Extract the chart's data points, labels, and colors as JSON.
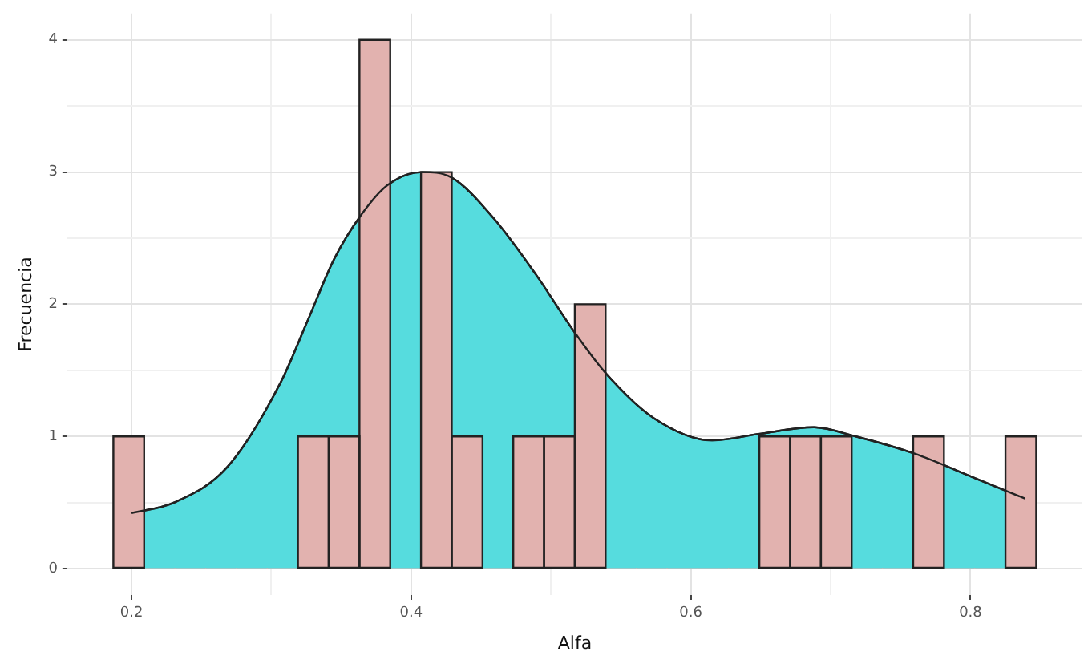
{
  "chart_data": {
    "type": "histogram",
    "xlabel": "Alfa",
    "ylabel": "Frecuencia",
    "xlim": [
      0.154,
      0.88
    ],
    "ylim": [
      -0.2,
      4.2
    ],
    "xticks": [
      0.2,
      {
        "value": 0.3,
        "label": null
      },
      0.4,
      {
        "value": 0.5,
        "label": null
      },
      0.6,
      {
        "value": 0.7,
        "label": null
      },
      0.8
    ],
    "yticks": [
      0,
      {
        "value": 0.5,
        "label": null
      },
      1,
      {
        "value": 1.5,
        "label": null
      },
      2,
      {
        "value": 2.5,
        "label": null
      },
      3,
      {
        "value": 3.5,
        "label": null
      },
      4
    ],
    "grid": true,
    "series": [
      {
        "type": "area",
        "color": "#56dcde",
        "x": [
          0.2,
          0.2305,
          0.2686,
          0.3067,
          0.3257,
          0.3448,
          0.3638,
          0.3829,
          0.4076,
          0.4286,
          0.459,
          0.4895,
          0.516,
          0.539,
          0.5733,
          0.6152,
          0.6495,
          0.6876,
          0.718,
          0.76,
          0.8019,
          0.8389
        ],
        "values": [
          0.42,
          0.5,
          0.77,
          1.41,
          1.87,
          2.34,
          2.67,
          2.9,
          3.0,
          2.96,
          2.65,
          2.22,
          1.8,
          1.48,
          1.14,
          0.97,
          1.02,
          1.07,
          1.0,
          0.87,
          0.69,
          0.53
        ]
      },
      {
        "type": "histogram",
        "color": "#e2b2af",
        "bins": [
          0.187,
          0.209,
          0.231,
          0.253,
          0.275,
          0.297,
          0.319,
          0.341,
          0.363,
          0.385,
          0.407,
          0.429,
          0.451,
          0.473,
          0.495,
          0.517,
          0.539,
          0.561,
          0.583,
          0.605,
          0.627,
          0.649,
          0.671,
          0.693,
          0.715,
          0.737,
          0.759,
          0.781,
          0.803,
          0.825,
          0.847
        ],
        "values": [
          1,
          0,
          0,
          0,
          0,
          0,
          1,
          1,
          4,
          0,
          3,
          1,
          0,
          1,
          1,
          2,
          0,
          0,
          0,
          0,
          0,
          1,
          1,
          1,
          0,
          0,
          1,
          0,
          0,
          1
        ]
      }
    ]
  }
}
